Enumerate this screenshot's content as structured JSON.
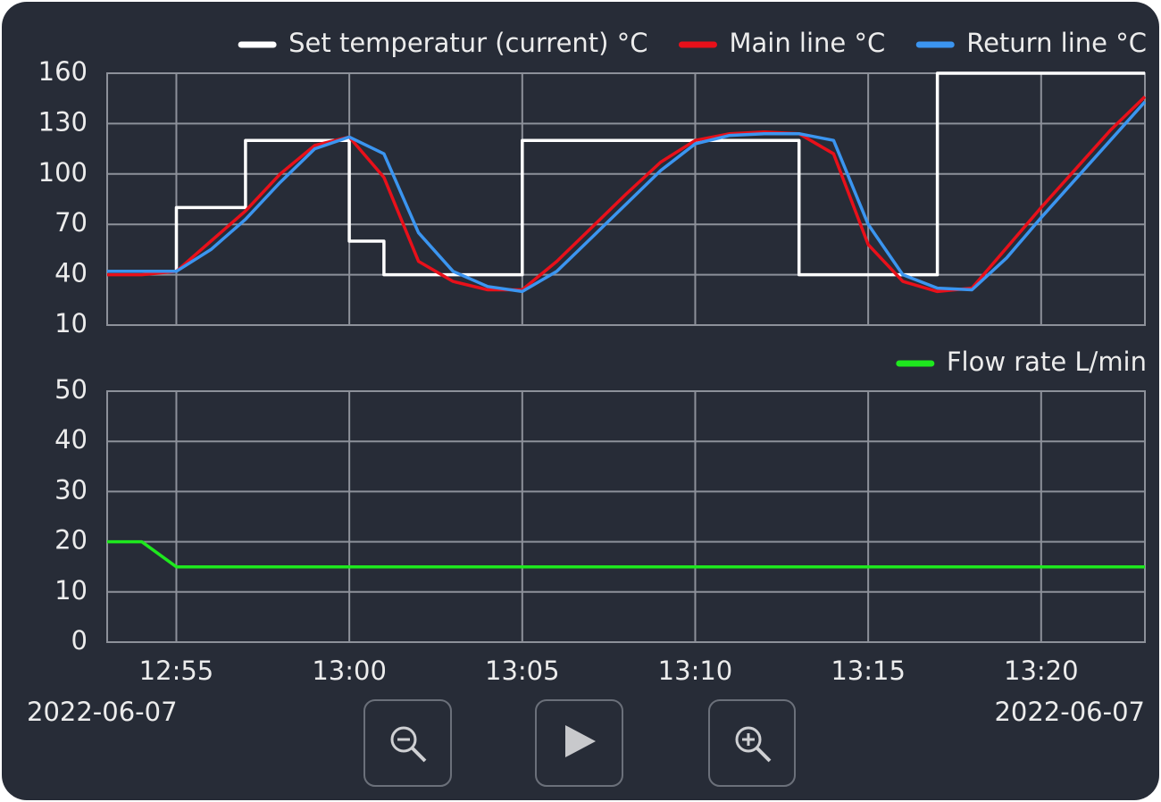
{
  "chart_data": [
    {
      "type": "line",
      "x": [
        "2022-06-07 12:53",
        "2022-06-07 12:54",
        "2022-06-07 12:55",
        "2022-06-07 12:56",
        "2022-06-07 12:57",
        "2022-06-07 12:58",
        "2022-06-07 12:59",
        "2022-06-07 13:00",
        "2022-06-07 13:01",
        "2022-06-07 13:02",
        "2022-06-07 13:03",
        "2022-06-07 13:04",
        "2022-06-07 13:05",
        "2022-06-07 13:06",
        "2022-06-07 13:07",
        "2022-06-07 13:08",
        "2022-06-07 13:09",
        "2022-06-07 13:10",
        "2022-06-07 13:11",
        "2022-06-07 13:12",
        "2022-06-07 13:13",
        "2022-06-07 13:14",
        "2022-06-07 13:15",
        "2022-06-07 13:16",
        "2022-06-07 13:17",
        "2022-06-07 13:18",
        "2022-06-07 13:19",
        "2022-06-07 13:20",
        "2022-06-07 13:21",
        "2022-06-07 13:22",
        "2022-06-07 13:23"
      ],
      "series": [
        {
          "name": "Set temperatur (current) °C",
          "color": "#ffffff",
          "x": [
            "2022-06-07 12:53",
            "2022-06-07 12:55",
            "2022-06-07 12:55",
            "2022-06-07 12:57",
            "2022-06-07 12:57",
            "2022-06-07 13:00",
            "2022-06-07 13:00",
            "2022-06-07 13:01",
            "2022-06-07 13:01",
            "2022-06-07 13:05",
            "2022-06-07 13:05",
            "2022-06-07 13:13",
            "2022-06-07 13:13",
            "2022-06-07 13:17",
            "2022-06-07 13:17",
            "2022-06-07 13:23"
          ],
          "values": [
            42,
            42,
            80,
            80,
            120,
            120,
            60,
            60,
            40,
            40,
            120,
            120,
            40,
            40,
            160,
            160
          ]
        },
        {
          "name": "Main line °C",
          "color": "#e8101a",
          "values": [
            40,
            40,
            42,
            60,
            78,
            100,
            117,
            122,
            98,
            48,
            36,
            31,
            31,
            48,
            68,
            88,
            107,
            120,
            124,
            125,
            124,
            112,
            58,
            36,
            30,
            32,
            56,
            80,
            103,
            126,
            146
          ]
        },
        {
          "name": "Return line °C",
          "color": "#3b95f0",
          "values": [
            42,
            42,
            42,
            55,
            73,
            95,
            115,
            122,
            112,
            65,
            42,
            33,
            30,
            42,
            62,
            82,
            102,
            118,
            123,
            124,
            124,
            120,
            70,
            40,
            32,
            31,
            50,
            74,
            97,
            120,
            143
          ]
        }
      ],
      "xlim": [
        "2022-06-07 12:53",
        "2022-06-07 13:23"
      ],
      "xticks": [
        "2022-06-07 12:55",
        "2022-06-07 13:00",
        "2022-06-07 13:05",
        "2022-06-07 13:10",
        "2022-06-07 13:15",
        "2022-06-07 13:20"
      ],
      "ylim": [
        10,
        160
      ],
      "yticks": [
        10,
        40,
        70,
        100,
        130,
        160
      ],
      "grid": true,
      "legend": "top-right"
    },
    {
      "type": "line",
      "x": [
        "2022-06-07 12:53",
        "2022-06-07 12:54",
        "2022-06-07 12:55",
        "2022-06-07 13:23"
      ],
      "series": [
        {
          "name": "Flow rate L/min",
          "color": "#1ee81e",
          "values": [
            20,
            20,
            15,
            15
          ]
        }
      ],
      "xlim": [
        "2022-06-07 12:53",
        "2022-06-07 13:23"
      ],
      "xticks": [
        {
          "value": "2022-06-07 12:55",
          "label": "12:55"
        },
        {
          "value": "2022-06-07 13:00",
          "label": "13:00"
        },
        {
          "value": "2022-06-07 13:05",
          "label": "13:05"
        },
        {
          "value": "2022-06-07 13:10",
          "label": "13:10"
        },
        {
          "value": "2022-06-07 13:15",
          "label": "13:15"
        },
        {
          "value": "2022-06-07 13:20",
          "label": "13:20"
        }
      ],
      "x_range_labels": [
        "2022-06-07",
        "2022-06-07"
      ],
      "ylim": [
        0,
        50
      ],
      "yticks": [
        0,
        10,
        20,
        30,
        40,
        50
      ],
      "grid": true,
      "legend": "top-right"
    }
  ]
}
